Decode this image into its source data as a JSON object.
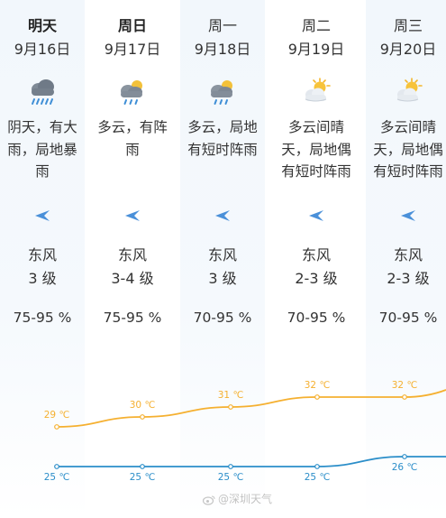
{
  "days": [
    {
      "day": "明天",
      "date": "9月16日",
      "desc_lines": [
        "阴天，有大",
        "雨，局地暴",
        "雨"
      ],
      "weather_icon": "heavy-rain-cloud-icon",
      "wind_direction": "东风",
      "wind_level": "3 级",
      "humidity": "75-95 %"
    },
    {
      "day": "周日",
      "date": "9月17日",
      "desc_lines": [
        "多云，有阵",
        "雨"
      ],
      "weather_icon": "cloud-sun-rain-icon",
      "wind_direction": "东风",
      "wind_level": "3-4 级",
      "humidity": "75-95 %"
    },
    {
      "day": "周一",
      "date": "9月18日",
      "desc_lines": [
        "多云，局地",
        "有短时阵雨"
      ],
      "weather_icon": "cloud-sun-rain-icon",
      "wind_direction": "东风",
      "wind_level": "3 级",
      "humidity": "70-95 %"
    },
    {
      "day": "周二",
      "date": "9月19日",
      "desc_lines": [
        "多云间晴",
        "天，局地偶",
        "有短时阵雨"
      ],
      "weather_icon": "partly-sunny-icon",
      "wind_direction": "东风",
      "wind_level": "2-3 级",
      "humidity": "70-95 %"
    },
    {
      "day": "周三",
      "date": "9月20日",
      "desc_lines": [
        "多云间晴",
        "天，局地偶",
        "有短时阵雨"
      ],
      "weather_icon": "partly-sunny-icon",
      "wind_direction": "东风",
      "wind_level": "2-3 级",
      "humidity": "70-95 %"
    }
  ],
  "chart_data": {
    "type": "line",
    "categories": [
      "9月16日",
      "9月17日",
      "9月18日",
      "9月19日",
      "9月20日"
    ],
    "series": [
      {
        "values": [
          29,
          30,
          31,
          32,
          32
        ],
        "color": "#f5b030",
        "labels": [
          "29 ℃",
          "30 ℃",
          "31 ℃",
          "32 ℃",
          "32 ℃"
        ]
      },
      {
        "values": [
          25,
          25,
          25,
          25,
          26
        ],
        "color": "#2b8ec9",
        "labels": [
          "25 ℃",
          "25 ℃",
          "25 ℃",
          "25 ℃",
          "26 ℃"
        ]
      }
    ]
  },
  "watermark": "@深圳天气",
  "colors": {
    "high_temp": "#f5b030",
    "low_temp": "#2b8ec9",
    "wind_arrow": "#4a90d9",
    "column_shade": "#f2f7fc"
  }
}
